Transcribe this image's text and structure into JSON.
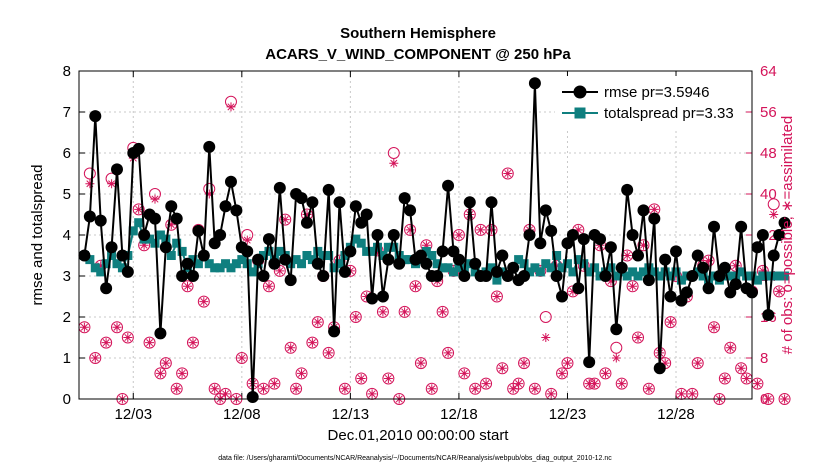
{
  "chart_data": {
    "type": "line",
    "title": "Southern Hemisphere",
    "subtitle": "ACARS_V_WIND_COMPONENT @ 250 hPa",
    "xlabel": "Dec.01,2010 00:00:00 start",
    "ylabel_left": "rmse and totalspread",
    "ylabel_right": "# of obs: o=possible; ∗=assimilated",
    "footer": "data file: /Users/gharamti/Documents/NCAR/Reanalysis/~/Documents/NCAR/Reanalysis/webpub/obs_diag_output_2010-12.nc",
    "xlim": [
      0.5,
      31.5
    ],
    "ylim_left": [
      0,
      8
    ],
    "ylim_right": [
      0,
      64
    ],
    "x_ticks": [
      {
        "x": 3,
        "label": "12/03"
      },
      {
        "x": 8,
        "label": "12/08"
      },
      {
        "x": 13,
        "label": "12/13"
      },
      {
        "x": 18,
        "label": "12/18"
      },
      {
        "x": 23,
        "label": "12/23"
      },
      {
        "x": 28,
        "label": "12/28"
      }
    ],
    "y_ticks_left": [
      "0",
      "1",
      "2",
      "3",
      "4",
      "5",
      "6",
      "7",
      "8"
    ],
    "y_ticks_right": [
      "0",
      "8",
      "16",
      "24",
      "32",
      "40",
      "48",
      "56",
      "64"
    ],
    "grid": true,
    "legend": {
      "position": "top-right",
      "entries": [
        "rmse pr=3.5946",
        "totalspread pr=3.33"
      ]
    },
    "colors": {
      "rmse": "#000000",
      "spread": "#0f7f7f",
      "obs": "#d4145a"
    },
    "series": [
      {
        "name": "rmse pr=3.5946",
        "axis": "left",
        "marker": "circle",
        "start": 0.75,
        "step": 0.25,
        "values": [
          3.5,
          4.45,
          6.9,
          4.35,
          2.7,
          3.7,
          5.6,
          3.5,
          3.1,
          6.0,
          6.1,
          4.0,
          4.5,
          4.4,
          1.6,
          3.7,
          4.7,
          4.4,
          3.0,
          3.3,
          3.0,
          4.1,
          3.5,
          6.15,
          3.8,
          4.0,
          4.7,
          5.3,
          4.6,
          3.7,
          3.6,
          0.05,
          3.4,
          3.0,
          3.9,
          3.3,
          5.15,
          3.4,
          2.9,
          5.0,
          4.9,
          4.3,
          4.8,
          3.3,
          3.0,
          5.1,
          1.65,
          4.8,
          3.1,
          3.6,
          4.7,
          4.3,
          4.5,
          2.45,
          4.0,
          2.5,
          3.4,
          4.0,
          3.3,
          4.9,
          4.6,
          3.4,
          3.5,
          3.3,
          3.0,
          3.0,
          3.6,
          5.2,
          3.6,
          3.4,
          3.0,
          4.8,
          3.3,
          3.0,
          3.0,
          4.8,
          3.1,
          3.5,
          3.0,
          3.2,
          2.9,
          3.0,
          4.0,
          7.7,
          3.8,
          4.6,
          4.1,
          3.0,
          2.5,
          3.8,
          4.0,
          2.7,
          3.9,
          0.9,
          4.0,
          3.9,
          3.0,
          3.7,
          1.7,
          3.2,
          5.1,
          4.0,
          3.5,
          4.6,
          2.9,
          4.4,
          0.75,
          3.4,
          2.5,
          3.6,
          2.4,
          2.6,
          3.0,
          3.5,
          3.2,
          2.7,
          4.2,
          3.0,
          3.2,
          2.6,
          2.8,
          4.2,
          2.7,
          2.6,
          3.7,
          4.0,
          2.05,
          3.5,
          4.0,
          4.3
        ]
      },
      {
        "name": "totalspread pr=3.33",
        "axis": "left",
        "marker": "square",
        "start": 0.75,
        "step": 0.25,
        "values": [
          3.5,
          3.4,
          3.2,
          3.1,
          3.3,
          3.5,
          3.3,
          3.2,
          3.5,
          4.1,
          4.3,
          3.9,
          3.9,
          3.8,
          4.0,
          3.9,
          3.5,
          3.8,
          3.6,
          3.2,
          3.4,
          3.3,
          3.5,
          3.3,
          3.2,
          3.2,
          3.3,
          3.2,
          3.3,
          3.4,
          3.3,
          3.1,
          3.3,
          3.5,
          3.6,
          3.4,
          3.6,
          3.5,
          3.3,
          3.4,
          3.3,
          3.5,
          3.4,
          3.6,
          3.5,
          3.5,
          3.2,
          3.3,
          3.5,
          3.7,
          3.9,
          3.8,
          3.6,
          3.6,
          3.7,
          3.5,
          3.7,
          3.7,
          3.5,
          3.4,
          3.4,
          3.3,
          3.4,
          3.6,
          3.5,
          3.3,
          3.2,
          3.2,
          3.1,
          3.2,
          3.2,
          3.3,
          3.1,
          3.0,
          3.1,
          3.2,
          2.9,
          3.1,
          3.0,
          3.2,
          3.4,
          3.3,
          3.1,
          3.2,
          3.1,
          3.3,
          3.2,
          3.5,
          3.2,
          3.3,
          3.1,
          3.4,
          3.3,
          3.1,
          3.2,
          3.0,
          3.1,
          3.2,
          3.0,
          3.1,
          3.0,
          3.1,
          3.0,
          3.1,
          3.2,
          3.1,
          3.0,
          3.1,
          3.0,
          3.1,
          2.9,
          3.0,
          3.0,
          3.1,
          3.0,
          2.9,
          3.0,
          2.9,
          3.0,
          3.0,
          3.0,
          3.1,
          3.0,
          3.0,
          2.9,
          3.0,
          3.0,
          3.0,
          3.0,
          3.0
        ]
      },
      {
        "name": "obs possible",
        "axis": "right",
        "marker": "open-circle",
        "start": 0.75,
        "step": 0.25,
        "values": [
          14,
          44,
          8,
          26,
          11,
          43,
          14,
          0,
          12,
          49,
          37,
          30,
          11,
          40,
          5,
          7,
          34,
          2,
          5,
          22,
          11,
          33,
          19,
          41,
          2,
          0,
          1,
          58,
          0,
          8,
          32,
          3,
          27,
          2,
          22,
          3,
          25,
          35,
          10,
          2,
          5,
          36,
          11,
          15,
          24,
          9,
          14,
          27,
          2,
          25,
          16,
          4,
          20,
          1,
          29,
          17,
          4,
          48,
          0,
          17,
          33,
          22,
          7,
          30,
          2,
          23,
          17,
          9,
          25,
          32,
          5,
          36,
          2,
          33,
          3,
          33,
          20,
          6,
          44,
          2,
          3,
          7,
          33,
          2,
          25,
          16,
          1,
          26,
          5,
          7,
          21,
          33,
          26,
          3,
          3,
          30,
          5,
          23,
          10,
          3,
          28,
          22,
          12,
          30,
          2,
          37,
          9,
          7,
          15,
          24,
          1,
          20,
          1,
          7,
          26,
          27,
          14,
          0,
          4,
          10,
          26,
          6,
          4,
          21,
          3,
          25,
          0,
          38,
          21,
          0
        ]
      },
      {
        "name": "obs assimilated",
        "axis": "right",
        "marker": "asterisk",
        "start": 0.75,
        "step": 0.25,
        "values": [
          14,
          42,
          8,
          26,
          11,
          42,
          14,
          0,
          12,
          47,
          37,
          30,
          11,
          39,
          5,
          7,
          34,
          2,
          5,
          22,
          11,
          33,
          19,
          40,
          2,
          0,
          1,
          57,
          0,
          8,
          31,
          3,
          27,
          2,
          22,
          3,
          25,
          35,
          10,
          2,
          5,
          36,
          11,
          15,
          24,
          9,
          14,
          27,
          2,
          25,
          16,
          4,
          20,
          1,
          29,
          17,
          4,
          46,
          0,
          17,
          33,
          22,
          7,
          30,
          2,
          23,
          17,
          9,
          25,
          32,
          5,
          36,
          2,
          33,
          3,
          33,
          20,
          6,
          44,
          2,
          3,
          7,
          33,
          2,
          25,
          12,
          1,
          26,
          5,
          7,
          21,
          33,
          26,
          3,
          3,
          30,
          5,
          23,
          8,
          3,
          28,
          22,
          12,
          30,
          2,
          37,
          9,
          7,
          15,
          24,
          1,
          20,
          1,
          7,
          26,
          27,
          14,
          0,
          4,
          10,
          26,
          6,
          4,
          21,
          3,
          25,
          0,
          36,
          21,
          0
        ]
      }
    ]
  }
}
